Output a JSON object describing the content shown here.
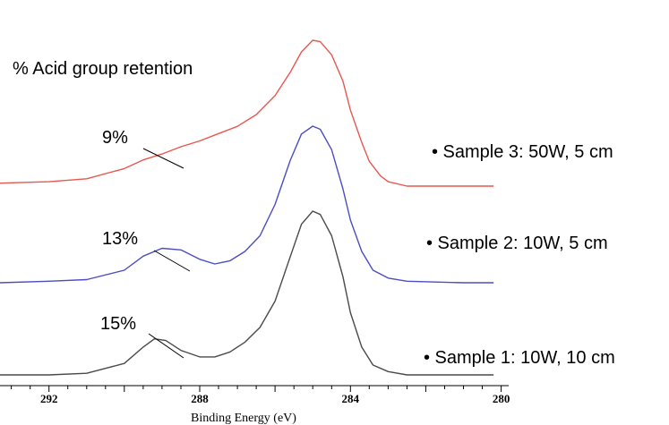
{
  "chart_data": {
    "type": "line",
    "title": "",
    "annotation_title": "% Acid group retention",
    "xlabel": "Binding Energy (eV)",
    "ylabel": "",
    "x_reversed": true,
    "xlim": [
      293.3,
      279.8
    ],
    "x_ticks": [
      292,
      288,
      284,
      280
    ],
    "x_tick_labels": [
      "292",
      "288",
      "284",
      "280"
    ],
    "x_minor_step": 0.5,
    "yaxis_visible": false,
    "grid": false,
    "legend": "none",
    "series": [
      {
        "name": "Sample 3: 50W, 5 cm",
        "label": "• Sample 3: 50W, 5 cm",
        "color": "#e8574f",
        "retention_label": "9%",
        "baseline": 0,
        "points": [
          [
            293.3,
            0.02
          ],
          [
            292,
            0.03
          ],
          [
            291,
            0.05
          ],
          [
            290,
            0.12
          ],
          [
            289.5,
            0.18
          ],
          [
            289,
            0.22
          ],
          [
            288.5,
            0.27
          ],
          [
            288,
            0.31
          ],
          [
            287.5,
            0.36
          ],
          [
            287,
            0.41
          ],
          [
            286.5,
            0.49
          ],
          [
            286,
            0.62
          ],
          [
            285.6,
            0.78
          ],
          [
            285.3,
            0.92
          ],
          [
            285.0,
            1.0
          ],
          [
            284.8,
            0.99
          ],
          [
            284.5,
            0.9
          ],
          [
            284.2,
            0.72
          ],
          [
            284.0,
            0.52
          ],
          [
            283.7,
            0.3
          ],
          [
            283.5,
            0.17
          ],
          [
            283.2,
            0.07
          ],
          [
            283,
            0.03
          ],
          [
            282.5,
            0.0
          ],
          [
            281,
            0.0
          ],
          [
            280.2,
            0.0
          ]
        ]
      },
      {
        "name": "Sample 2: 10W, 5 cm",
        "label": "• Sample 2: 10W, 5 cm",
        "color": "#4b4dc2",
        "retention_label": "13%",
        "baseline": 0,
        "points": [
          [
            293.3,
            0.0
          ],
          [
            292,
            0.01
          ],
          [
            291,
            0.02
          ],
          [
            290,
            0.08
          ],
          [
            289.5,
            0.17
          ],
          [
            289,
            0.22
          ],
          [
            288.5,
            0.21
          ],
          [
            288,
            0.15
          ],
          [
            287.6,
            0.12
          ],
          [
            287.2,
            0.14
          ],
          [
            286.8,
            0.2
          ],
          [
            286.4,
            0.3
          ],
          [
            286,
            0.5
          ],
          [
            285.6,
            0.78
          ],
          [
            285.3,
            0.95
          ],
          [
            285.0,
            1.0
          ],
          [
            284.8,
            0.98
          ],
          [
            284.5,
            0.85
          ],
          [
            284.2,
            0.6
          ],
          [
            284.0,
            0.4
          ],
          [
            283.7,
            0.2
          ],
          [
            283.4,
            0.08
          ],
          [
            283,
            0.03
          ],
          [
            282.5,
            0.01
          ],
          [
            281,
            0.0
          ],
          [
            280.2,
            0.0
          ]
        ]
      },
      {
        "name": "Sample 1: 10W, 10 cm",
        "label": "• Sample 1: 10W, 10 cm",
        "color": "#4a4a4a",
        "retention_label": "15%",
        "baseline": 0,
        "points": [
          [
            293.3,
            0.0
          ],
          [
            292,
            0.0
          ],
          [
            291,
            0.01
          ],
          [
            290,
            0.07
          ],
          [
            289.5,
            0.17
          ],
          [
            289.2,
            0.22
          ],
          [
            288.9,
            0.21
          ],
          [
            288.5,
            0.15
          ],
          [
            288,
            0.11
          ],
          [
            287.6,
            0.11
          ],
          [
            287.2,
            0.14
          ],
          [
            286.8,
            0.2
          ],
          [
            286.4,
            0.29
          ],
          [
            286,
            0.45
          ],
          [
            285.6,
            0.72
          ],
          [
            285.3,
            0.92
          ],
          [
            285.0,
            1.0
          ],
          [
            284.8,
            0.98
          ],
          [
            284.5,
            0.85
          ],
          [
            284.2,
            0.6
          ],
          [
            284.0,
            0.38
          ],
          [
            283.7,
            0.17
          ],
          [
            283.4,
            0.06
          ],
          [
            283,
            0.02
          ],
          [
            282.5,
            0.0
          ],
          [
            281,
            0.0
          ],
          [
            280.2,
            0.0
          ]
        ]
      }
    ]
  }
}
